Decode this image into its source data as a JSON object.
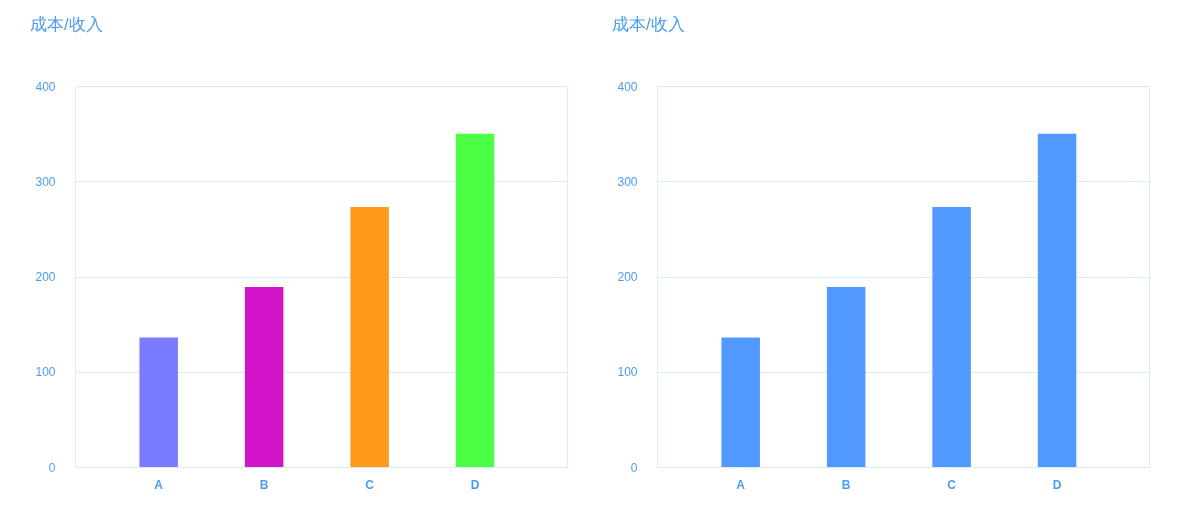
{
  "chart_data": [
    {
      "type": "bar",
      "title": "成本/收入",
      "categories": [
        "A",
        "B",
        "C",
        "D"
      ],
      "values": [
        136,
        189,
        273,
        350
      ],
      "colors": [
        "#7b7bff",
        "#d214c8",
        "#ff991a",
        "#4cff44"
      ],
      "ylim": [
        0,
        400
      ],
      "yticks": [
        0,
        100,
        200,
        300,
        400
      ],
      "grid": "y"
    },
    {
      "type": "bar",
      "title": "成本/收入",
      "categories": [
        "A",
        "B",
        "C",
        "D"
      ],
      "values": [
        136,
        189,
        273,
        350
      ],
      "color": "#5199ff",
      "ylim": [
        0,
        400
      ],
      "yticks": [
        0,
        100,
        200,
        300,
        400
      ],
      "grid": "y"
    }
  ]
}
